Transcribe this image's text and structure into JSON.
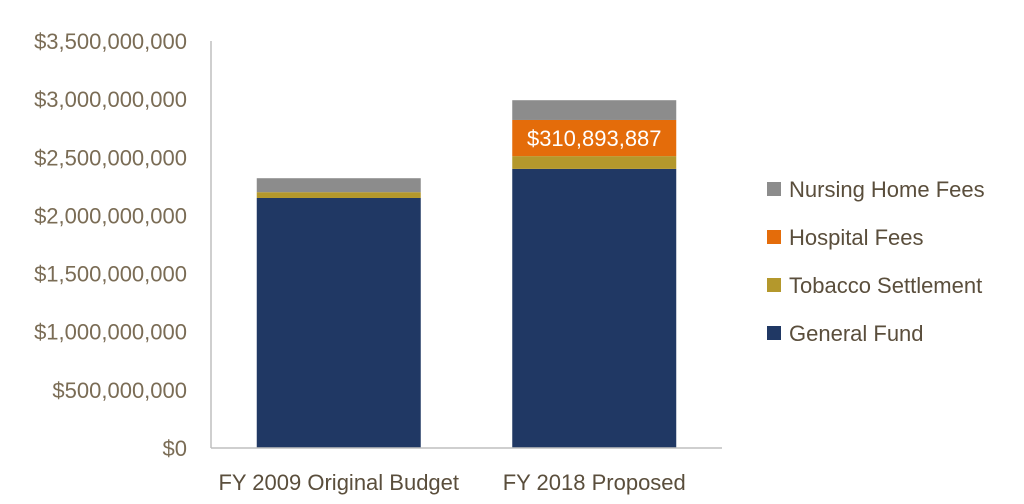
{
  "chart_data": {
    "type": "bar",
    "stacked": true,
    "categories": [
      "FY 2009 Original Budget",
      "FY 2018 Proposed"
    ],
    "series": [
      {
        "name": "General Fund",
        "color": "#203864",
        "values": [
          2150000000,
          2400000000
        ]
      },
      {
        "name": "Tobacco Settlement",
        "color": "#b4982c",
        "values": [
          50000000,
          110000000
        ]
      },
      {
        "name": "Hospital Fees",
        "color": "#e46c0a",
        "values": [
          0,
          310893887
        ]
      },
      {
        "name": "Nursing Home Fees",
        "color": "#8c8c8c",
        "values": [
          120000000,
          170000000
        ]
      }
    ],
    "yticks": [
      "$0",
      "$500,000,000",
      "$1,000,000,000",
      "$1,500,000,000",
      "$2,000,000,000",
      "$2,500,000,000",
      "$3,000,000,000",
      "$3,500,000,000"
    ],
    "ylim": [
      0,
      3500000000
    ],
    "data_labels": [
      {
        "category": "FY 2018 Proposed",
        "series": "Hospital Fees",
        "text": "$310,893,887"
      }
    ],
    "legend_position": "right",
    "grid": false
  }
}
